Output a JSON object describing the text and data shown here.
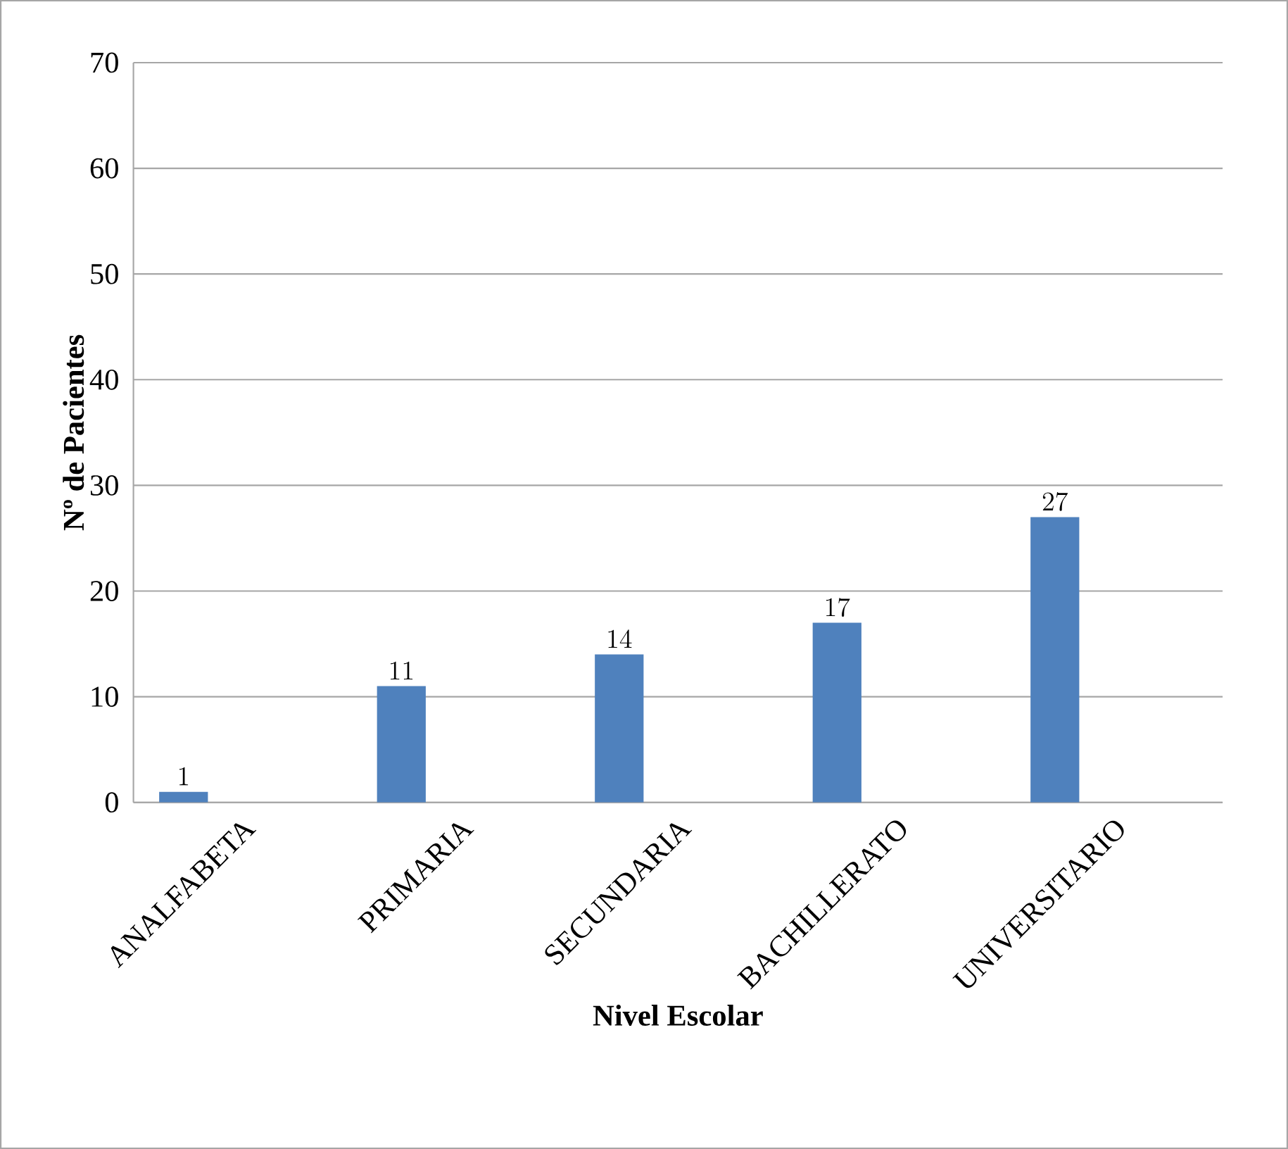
{
  "chart_data": {
    "type": "bar",
    "xlabel": "Nivel Escolar",
    "ylabel": "Nº de Pacientes",
    "categories": [
      "ANALFABETA",
      "PRIMARIA",
      "SECUNDARIA",
      "BACHILLERATO",
      "UNIVERSITARIO"
    ],
    "values": [
      1,
      11,
      14,
      17,
      27
    ],
    "color": "#4f81bd",
    "ylim": [
      0,
      70
    ],
    "yticks": [
      0,
      10,
      20,
      30,
      40,
      50,
      60,
      70
    ],
    "grid": "y",
    "data_labels": true
  }
}
